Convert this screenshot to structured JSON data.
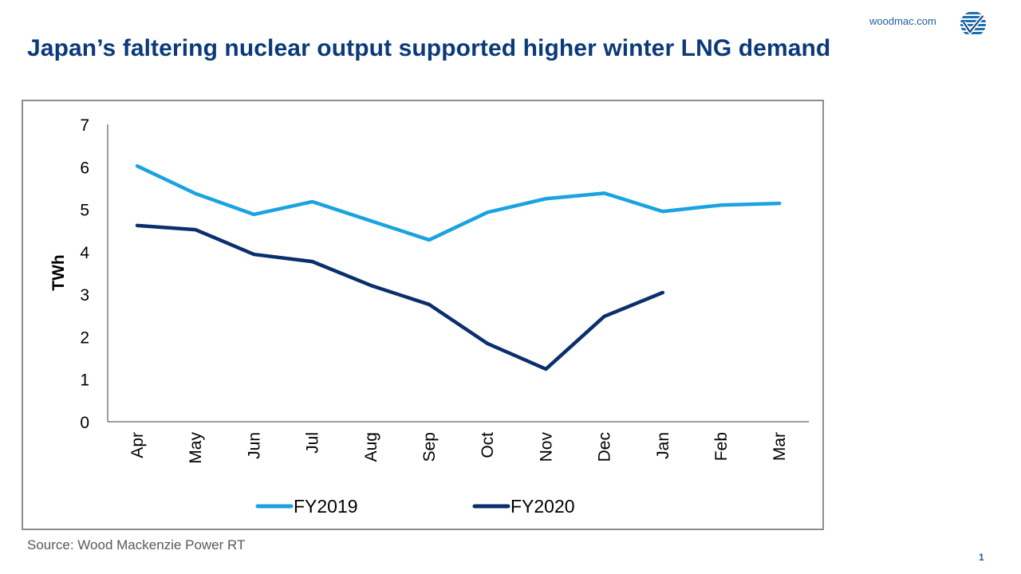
{
  "header": {
    "site_link": "woodmac.com",
    "logo_icon": "wood-mackenzie-checkmark-globe-icon",
    "title": "Japan’s faltering nuclear output supported higher winter LNG demand"
  },
  "footer": {
    "source": "Source: Wood Mackenzie Power RT",
    "page_number": "1"
  },
  "colors": {
    "title": "#0b3a7a",
    "fy2019": "#1aa3e0",
    "fy2020": "#0b2f6e",
    "axis": "#7f7f7f",
    "frame": "#8c8c8c"
  },
  "chart_data": {
    "type": "line",
    "title": "",
    "xlabel": "",
    "ylabel": "TWh",
    "ylim": [
      0,
      7
    ],
    "yticks": [
      "0",
      "1",
      "2",
      "3",
      "4",
      "5",
      "6",
      "7"
    ],
    "grid": false,
    "legend": "bottom",
    "categories": [
      "Apr",
      "May",
      "Jun",
      "Jul",
      "Aug",
      "Sep",
      "Oct",
      "Nov",
      "Dec",
      "Jan",
      "Feb",
      "Mar"
    ],
    "series": [
      {
        "name": "FY2019",
        "color": "#1aa3e0",
        "values": [
          6.02,
          5.37,
          4.88,
          5.18,
          4.73,
          4.28,
          4.93,
          5.25,
          5.38,
          4.95,
          5.1,
          5.14
        ]
      },
      {
        "name": "FY2020",
        "color": "#0b2f6e",
        "values": [
          4.62,
          4.52,
          3.94,
          3.77,
          3.21,
          2.76,
          1.84,
          1.24,
          2.48,
          3.04,
          null,
          null
        ]
      }
    ]
  }
}
